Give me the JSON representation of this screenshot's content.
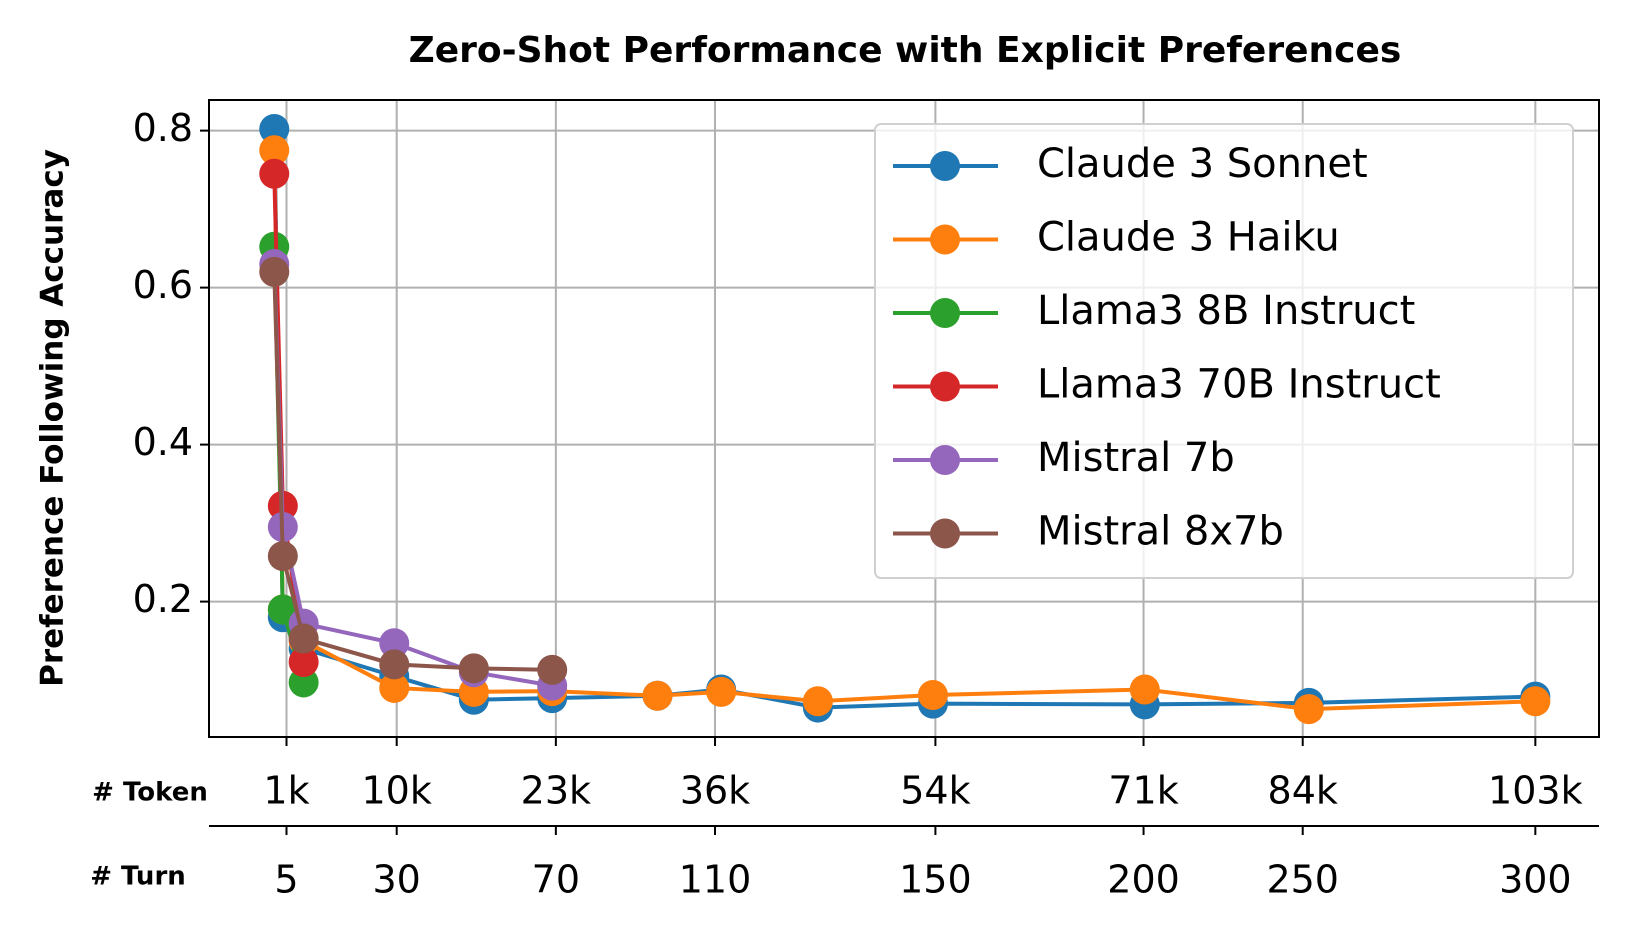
{
  "chart_data": {
    "type": "line",
    "title": "Zero-Shot Performance with Explicit Preferences",
    "ylabel": "Preference Following Accuracy",
    "xlabel": "# Token",
    "x2label": "# Turn",
    "x": [
      0,
      0.7,
      2.4,
      9.8,
      16.3,
      22.7,
      31.3,
      36.5,
      44.4,
      53.8,
      71.1,
      84.5,
      103
    ],
    "series": [
      {
        "name": "Claude 3 Sonnet",
        "color": "#1f77b4",
        "values": [
          0.802,
          0.18,
          0.14,
          0.105,
          0.075,
          0.077,
          0.08,
          0.088,
          0.065,
          0.07,
          0.069,
          0.071,
          0.079
        ]
      },
      {
        "name": "Claude 3 Haiku",
        "color": "#ff7f0e",
        "values": [
          0.775,
          0.19,
          0.15,
          0.09,
          0.085,
          0.086,
          0.08,
          0.085,
          0.073,
          0.081,
          0.088,
          0.063,
          0.073
        ]
      },
      {
        "name": "Llama3 8B Instruct",
        "color": "#2ca02c",
        "values": [
          0.652,
          0.19,
          0.097,
          null,
          null,
          null,
          null,
          null,
          null,
          null,
          null,
          null,
          null
        ]
      },
      {
        "name": "Llama3 70B Instruct",
        "color": "#d62728",
        "values": [
          0.745,
          0.322,
          0.123,
          null,
          null,
          null,
          null,
          null,
          null,
          null,
          null,
          null,
          null
        ]
      },
      {
        "name": "Mistral 7b",
        "color": "#9467bd",
        "values": [
          0.63,
          0.295,
          0.172,
          0.147,
          0.11,
          0.093,
          null,
          null,
          null,
          null,
          null,
          null,
          null
        ]
      },
      {
        "name": "Mistral 8x7b",
        "color": "#8c564b",
        "values": [
          0.62,
          0.258,
          0.153,
          0.12,
          0.115,
          0.113,
          null,
          null,
          null,
          null,
          null,
          null,
          null
        ]
      }
    ],
    "xlim": [
      -5.33,
      108.2
    ],
    "ylim": [
      0.0275,
      0.839
    ],
    "xticks": [
      {
        "value": 1,
        "label": "1k"
      },
      {
        "value": 10,
        "label": "10k"
      },
      {
        "value": 23,
        "label": "23k"
      },
      {
        "value": 36,
        "label": "36k"
      },
      {
        "value": 54,
        "label": "54k"
      },
      {
        "value": 71,
        "label": "71k"
      },
      {
        "value": 84,
        "label": "84k"
      },
      {
        "value": 103,
        "label": "103k"
      }
    ],
    "x2ticks": [
      5,
      30,
      70,
      110,
      150,
      200,
      250,
      300
    ],
    "yticks": [
      0.2,
      0.4,
      0.6,
      0.8
    ],
    "grid": true,
    "legend": "upper right"
  }
}
